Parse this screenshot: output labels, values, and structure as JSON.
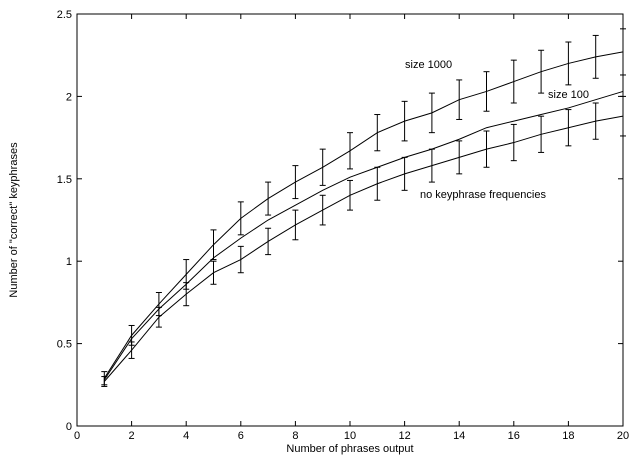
{
  "chart_data": {
    "type": "line",
    "title": "",
    "xlabel": "Number of phrases output",
    "ylabel": "Number of \"correct\" keyphrases",
    "xlim": [
      0,
      20
    ],
    "ylim": [
      0,
      2.5
    ],
    "xticks": [
      0,
      2,
      4,
      6,
      8,
      10,
      12,
      14,
      16,
      18,
      20
    ],
    "yticks": [
      0,
      0.5,
      1,
      1.5,
      2,
      2.5
    ],
    "grid": false,
    "legend": "none",
    "x": [
      1,
      2,
      3,
      4,
      5,
      6,
      7,
      8,
      9,
      10,
      11,
      12,
      13,
      14,
      15,
      16,
      17,
      18,
      19,
      20
    ],
    "series": [
      {
        "name": "size 1000",
        "values": [
          0.29,
          0.55,
          0.74,
          0.92,
          1.1,
          1.26,
          1.38,
          1.48,
          1.57,
          1.67,
          1.78,
          1.85,
          1.9,
          1.98,
          2.03,
          2.09,
          2.15,
          2.2,
          2.24,
          2.27
        ],
        "err": [
          0.04,
          0.06,
          0.07,
          0.09,
          0.09,
          0.1,
          0.1,
          0.1,
          0.11,
          0.11,
          0.11,
          0.12,
          0.12,
          0.12,
          0.12,
          0.13,
          0.13,
          0.13,
          0.13,
          0.14
        ]
      },
      {
        "name": "size 100",
        "values": [
          0.28,
          0.53,
          0.71,
          0.86,
          1.02,
          1.14,
          1.25,
          1.34,
          1.43,
          1.51,
          1.57,
          1.63,
          1.68,
          1.74,
          1.81,
          1.85,
          1.89,
          1.93,
          1.98,
          2.03
        ],
        "err": []
      },
      {
        "name": "no keyphrase frequencies",
        "values": [
          0.27,
          0.46,
          0.66,
          0.8,
          0.93,
          1.01,
          1.12,
          1.22,
          1.31,
          1.4,
          1.47,
          1.53,
          1.58,
          1.63,
          1.68,
          1.72,
          1.77,
          1.81,
          1.85,
          1.88
        ],
        "err": [
          0.03,
          0.05,
          0.06,
          0.07,
          0.07,
          0.08,
          0.08,
          0.09,
          0.09,
          0.09,
          0.1,
          0.1,
          0.1,
          0.1,
          0.11,
          0.11,
          0.11,
          0.11,
          0.11,
          0.12
        ]
      }
    ]
  }
}
